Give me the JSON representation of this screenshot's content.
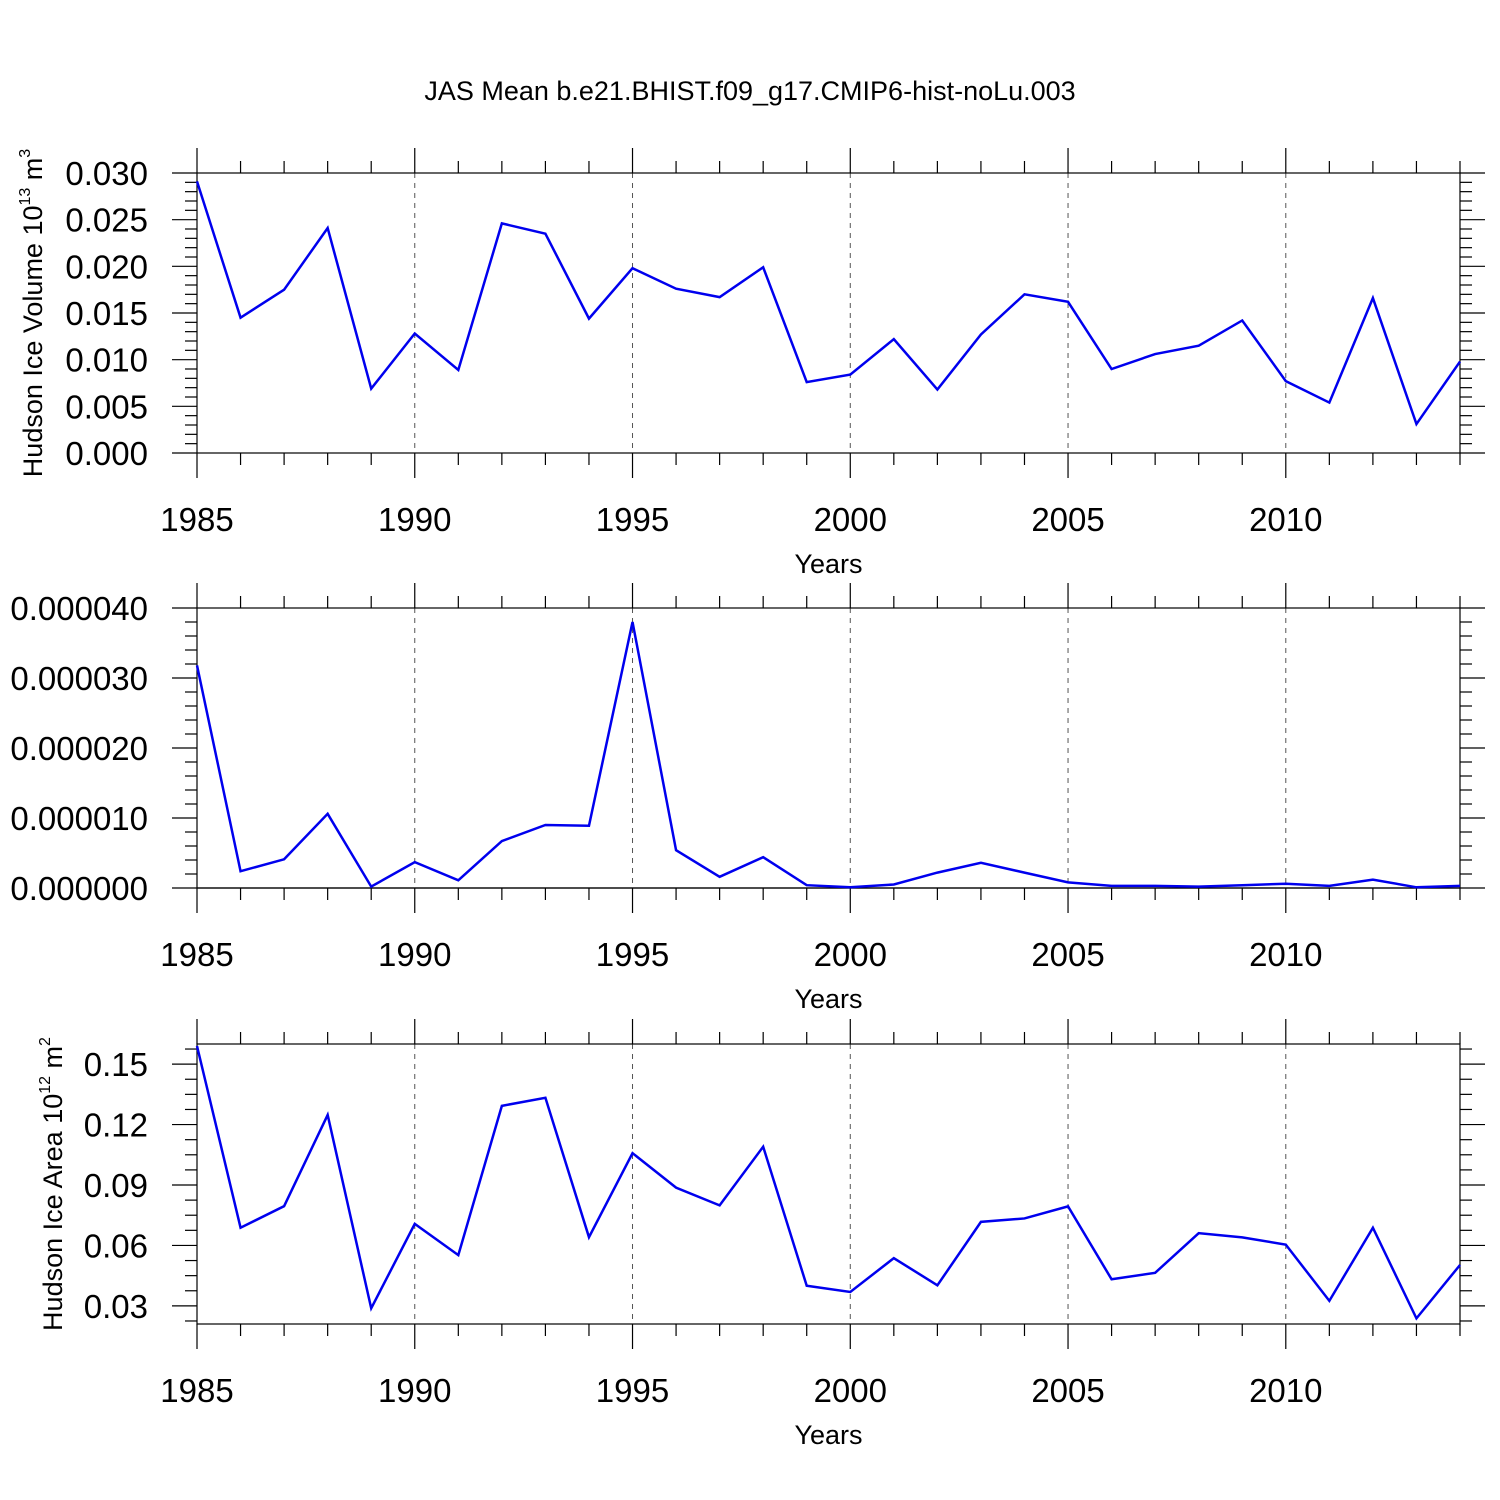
{
  "title": "JAS Mean b.e21.BHIST.f09_g17.CMIP6-hist-noLu.003",
  "colors": {
    "line": "#0000ee",
    "axis": "#000000",
    "grid": "#555555"
  },
  "chart_data": [
    {
      "type": "line",
      "name": "volume",
      "ylabel_main": "Hudson Ice Volume 10",
      "ylabel_sup": "13",
      "ylabel_unit": " m",
      "ylabel_unit_sup": "3",
      "xlabel": "Years",
      "xlim": [
        1985,
        2014
      ],
      "ylim": [
        0,
        0.03
      ],
      "ylim_plot": [
        0,
        0.03
      ],
      "grid_x": true,
      "zero_line": false,
      "x_ticks": [
        1985,
        1990,
        1995,
        2000,
        2005,
        2010
      ],
      "x_tick_labels": [
        "1985",
        "1990",
        "1995",
        "2000",
        "2005",
        "2010"
      ],
      "y_ticks": [
        0,
        0.005,
        0.01,
        0.015,
        0.02,
        0.025,
        0.03
      ],
      "y_tick_labels": [
        "0.000",
        "0.005",
        "0.010",
        "0.015",
        "0.020",
        "0.025",
        "0.030"
      ],
      "y_minor_step": 0.001,
      "x": [
        1985,
        1986,
        1987,
        1988,
        1989,
        1990,
        1991,
        1992,
        1993,
        1994,
        1995,
        1996,
        1997,
        1998,
        1999,
        2000,
        2001,
        2002,
        2003,
        2004,
        2005,
        2006,
        2007,
        2008,
        2009,
        2010,
        2011,
        2012,
        2013,
        2014
      ],
      "values": [
        0.0291,
        0.0145,
        0.0175,
        0.0241,
        0.0069,
        0.0128,
        0.0089,
        0.0246,
        0.0235,
        0.0144,
        0.0198,
        0.0176,
        0.0167,
        0.0199,
        0.0076,
        0.0084,
        0.0122,
        0.0068,
        0.0127,
        0.017,
        0.0162,
        0.009,
        0.0106,
        0.0115,
        0.0142,
        0.0077,
        0.0054,
        0.0166,
        0.0031,
        0.0098
      ]
    },
    {
      "type": "line",
      "name": "middle",
      "ylabel_main": "",
      "ylabel_sup": "",
      "ylabel_unit": "",
      "ylabel_unit_sup": "",
      "xlabel": "Years",
      "xlim": [
        1985,
        2014
      ],
      "ylim": [
        0,
        4e-05
      ],
      "ylim_plot": [
        0,
        4e-05
      ],
      "grid_x": true,
      "zero_line": true,
      "x_ticks": [
        1985,
        1990,
        1995,
        2000,
        2005,
        2010
      ],
      "x_tick_labels": [
        "1985",
        "1990",
        "1995",
        "2000",
        "2005",
        "2010"
      ],
      "y_ticks": [
        0,
        1e-05,
        2e-05,
        3e-05,
        4e-05
      ],
      "y_tick_labels": [
        "0.000000",
        "0.000010",
        "0.000020",
        "0.000030",
        "0.000040"
      ],
      "y_minor_step": 2e-06,
      "x": [
        1985,
        1986,
        1987,
        1988,
        1989,
        1990,
        1991,
        1992,
        1993,
        1994,
        1995,
        1996,
        1997,
        1998,
        1999,
        2000,
        2001,
        2002,
        2003,
        2004,
        2005,
        2006,
        2007,
        2008,
        2009,
        2010,
        2011,
        2012,
        2013,
        2014
      ],
      "values": [
        3.18e-05,
        2.4e-06,
        4.1e-06,
        1.06e-05,
        2e-07,
        3.7e-06,
        1.1e-06,
        6.7e-06,
        9e-06,
        8.9e-06,
        3.8e-05,
        5.4e-06,
        1.6e-06,
        4.4e-06,
        4e-07,
        1e-07,
        5e-07,
        2.2e-06,
        3.6e-06,
        2.2e-06,
        8e-07,
        3e-07,
        3e-07,
        2e-07,
        4e-07,
        6e-07,
        3e-07,
        1.2e-06,
        1e-07,
        3e-07
      ]
    },
    {
      "type": "line",
      "name": "area",
      "ylabel_main": "Hudson Ice Area 10",
      "ylabel_sup": "12",
      "ylabel_unit": " m",
      "ylabel_unit_sup": "2",
      "xlabel": "Years",
      "xlim": [
        1985,
        2014
      ],
      "ylim": [
        0.021,
        0.16
      ],
      "ylim_plot": [
        0.021,
        0.16
      ],
      "grid_x": true,
      "zero_line": false,
      "x_ticks": [
        1985,
        1990,
        1995,
        2000,
        2005,
        2010
      ],
      "x_tick_labels": [
        "1985",
        "1990",
        "1995",
        "2000",
        "2005",
        "2010"
      ],
      "y_ticks": [
        0.03,
        0.06,
        0.09,
        0.12,
        0.15
      ],
      "y_tick_labels": [
        "0.03",
        "0.06",
        "0.09",
        "0.12",
        "0.15"
      ],
      "y_minor_step": 0.0075,
      "x": [
        1985,
        1986,
        1987,
        1988,
        1989,
        1990,
        1991,
        1992,
        1993,
        1994,
        1995,
        1996,
        1997,
        1998,
        1999,
        2000,
        2001,
        2002,
        2003,
        2004,
        2005,
        2006,
        2007,
        2008,
        2009,
        2010,
        2011,
        2012,
        2013,
        2014
      ],
      "values": [
        0.159,
        0.0688,
        0.0795,
        0.1248,
        0.0288,
        0.0707,
        0.0552,
        0.1293,
        0.1333,
        0.0641,
        0.1058,
        0.0887,
        0.0799,
        0.109,
        0.04,
        0.0369,
        0.0537,
        0.0402,
        0.0717,
        0.0734,
        0.0794,
        0.0432,
        0.0464,
        0.0661,
        0.064,
        0.0604,
        0.0325,
        0.0688,
        0.0238,
        0.0503
      ]
    }
  ]
}
